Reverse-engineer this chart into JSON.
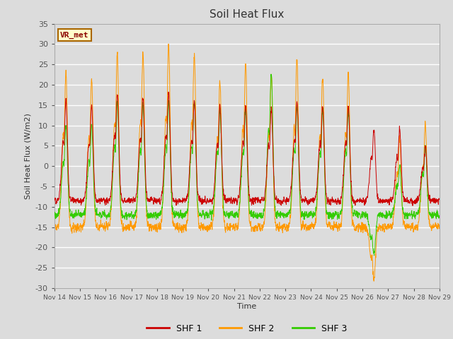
{
  "title": "Soil Heat Flux",
  "ylabel": "Soil Heat Flux (W/m2)",
  "xlabel": "Time",
  "ylim": [
    -30,
    35
  ],
  "background_color": "#e8e8e8",
  "plot_bg_color": "#dcdcdc",
  "grid_color": "#ffffff",
  "colors": {
    "SHF 1": "#cc0000",
    "SHF 2": "#ff9900",
    "SHF 3": "#33cc00"
  },
  "legend_label": "VR_met",
  "x_tick_labels": [
    "Nov 14",
    "Nov 15",
    "Nov 16",
    "Nov 17",
    "Nov 18",
    "Nov 19",
    "Nov 20",
    "Nov 21",
    "Nov 22",
    "Nov 23",
    "Nov 24",
    "Nov 25",
    "Nov 26",
    "Nov 27",
    "Nov 28",
    "Nov 29"
  ],
  "n_days": 15,
  "pts_per_day": 144
}
